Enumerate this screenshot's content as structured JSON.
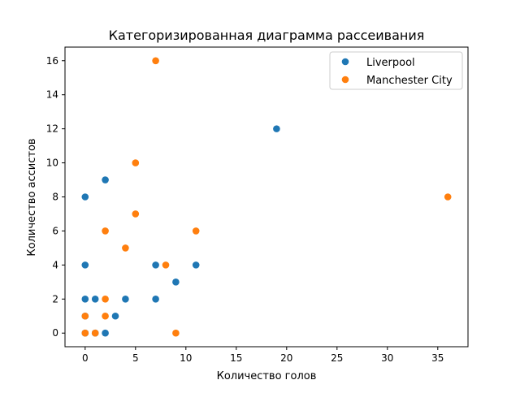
{
  "chart_data": {
    "type": "scatter",
    "title": "Категоризированная диаграмма рассеивания",
    "xlabel": "Количество голов",
    "ylabel": "Количество ассистов",
    "xlim": [
      -2,
      38
    ],
    "ylim": [
      -0.8,
      16.8
    ],
    "xticks": [
      0,
      5,
      10,
      15,
      20,
      25,
      30,
      35
    ],
    "yticks": [
      0,
      2,
      4,
      6,
      8,
      10,
      12,
      14,
      16
    ],
    "grid": false,
    "legend_position": "top-right",
    "series": [
      {
        "name": "Liverpool",
        "color": "#1f77b4",
        "points": [
          [
            19,
            12
          ],
          [
            2,
            9
          ],
          [
            0,
            8
          ],
          [
            0,
            4
          ],
          [
            7,
            4
          ],
          [
            11,
            4
          ],
          [
            9,
            3
          ],
          [
            0,
            2
          ],
          [
            1,
            2
          ],
          [
            4,
            2
          ],
          [
            7,
            2
          ],
          [
            3,
            1
          ],
          [
            0,
            1
          ],
          [
            0,
            0
          ],
          [
            1,
            0
          ],
          [
            2,
            0
          ]
        ]
      },
      {
        "name": "Manchester City",
        "color": "#ff7f0e",
        "points": [
          [
            7,
            16
          ],
          [
            5,
            10
          ],
          [
            36,
            8
          ],
          [
            5,
            7
          ],
          [
            2,
            6
          ],
          [
            11,
            6
          ],
          [
            4,
            5
          ],
          [
            8,
            4
          ],
          [
            2,
            2
          ],
          [
            0,
            1
          ],
          [
            2,
            1
          ],
          [
            0,
            0
          ],
          [
            1,
            0
          ],
          [
            9,
            0
          ]
        ]
      }
    ]
  }
}
